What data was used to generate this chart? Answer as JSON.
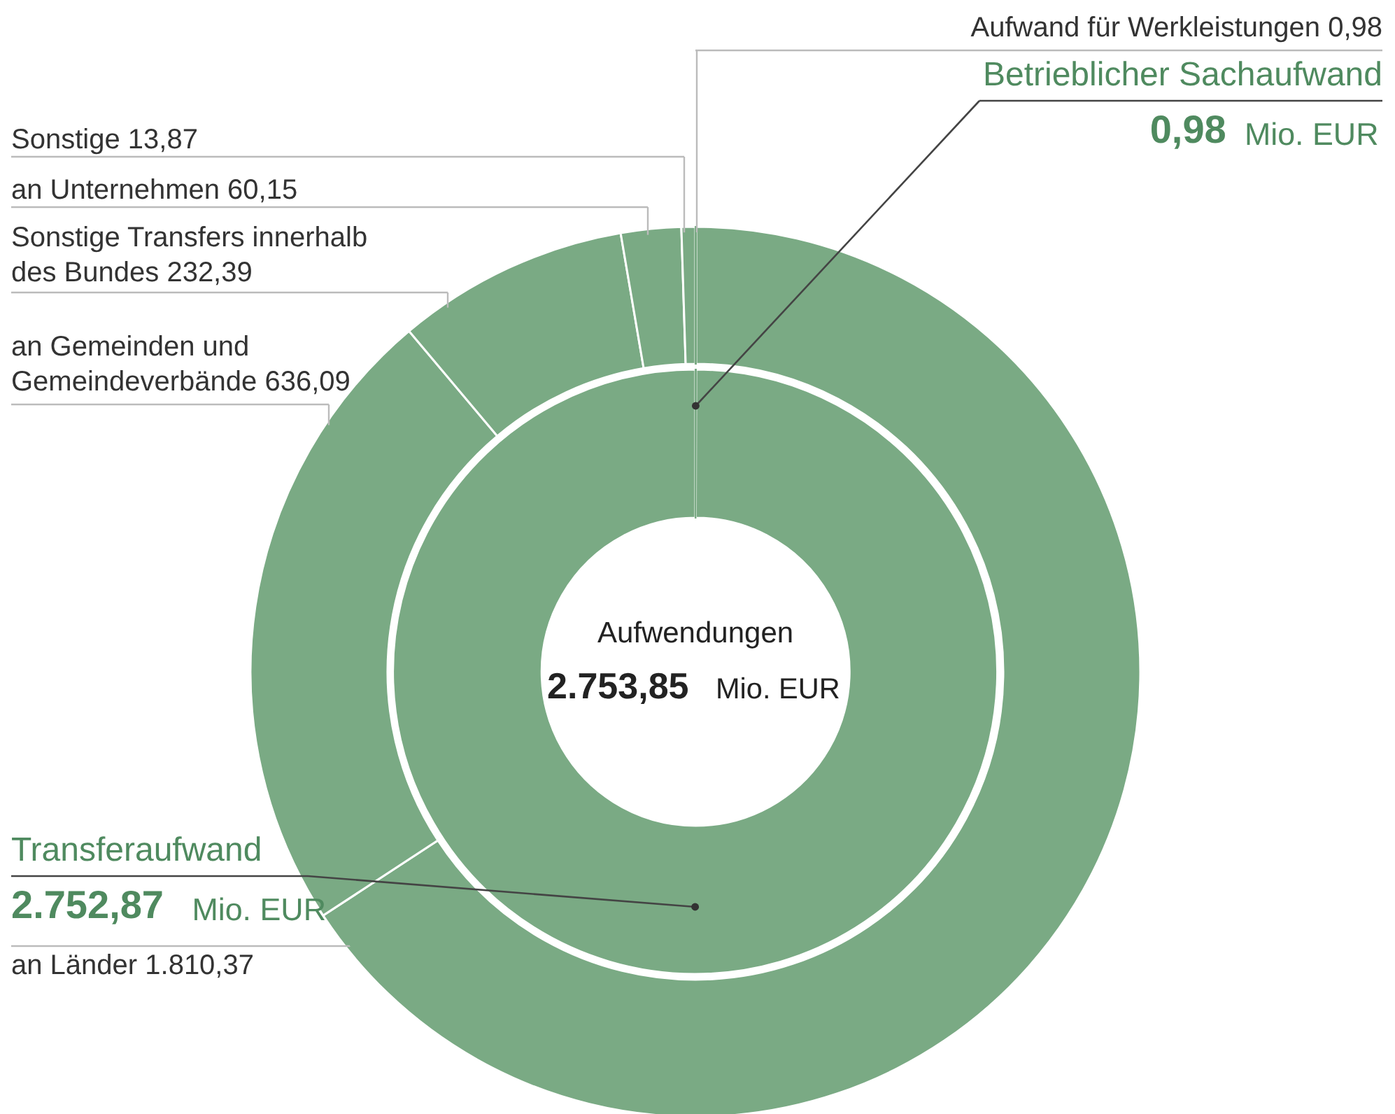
{
  "chart_data": {
    "type": "donut",
    "annotations": [
      "Aufwendungen",
      "2.753,85 Mio. EUR"
    ],
    "categories": [
      "Betrieblicher Sachaufwand",
      "Transferaufwand",
      "Aufwand für Werkleistungen",
      "an Länder",
      "an Gemeinden und Gemeindeverbände",
      "Sonstige Transfers innerhalb des Bundes",
      "an Unternehmen",
      "Sonstige"
    ],
    "series": [
      {
        "color": "#7aaa84",
        "values": [
          0.98,
          2752.87,
          null,
          null,
          null,
          null,
          null,
          null
        ],
        "value_labels": [
          "0,98 Mio. EUR",
          "2.752,87 Mio. EUR",
          null,
          null,
          null,
          null,
          null,
          null
        ]
      },
      {
        "color": "#7aaa84",
        "values": [
          null,
          null,
          0.98,
          1810.37,
          636.09,
          232.39,
          60.15,
          13.87
        ],
        "value_labels": [
          null,
          null,
          "0,98",
          "1.810,37",
          "636,09",
          "232,39",
          "60,15",
          "13,87"
        ]
      }
    ]
  }
}
